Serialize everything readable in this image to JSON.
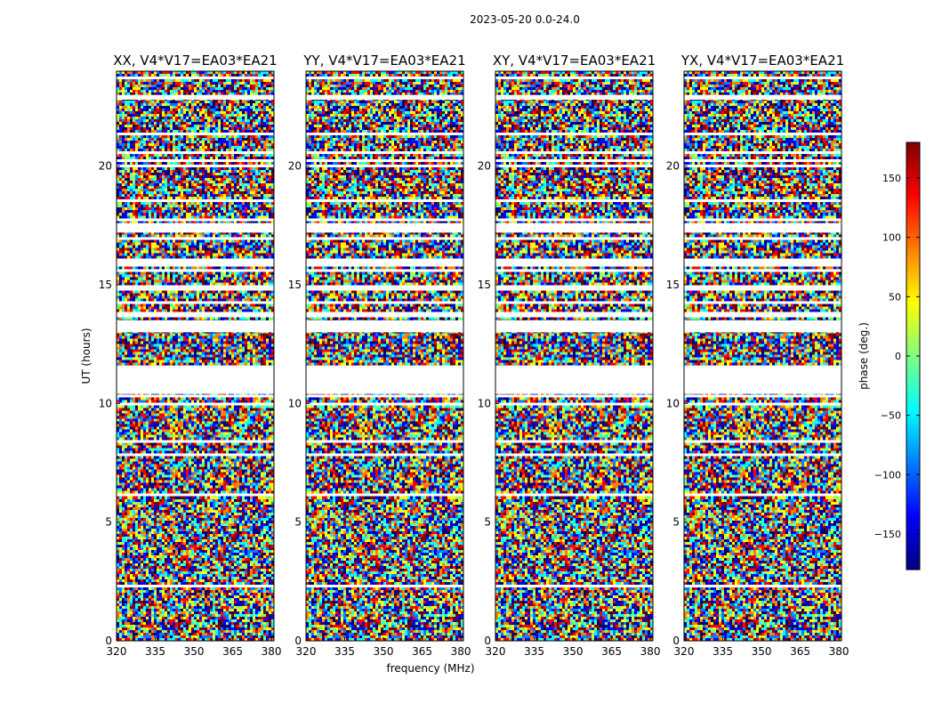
{
  "chart_data": {
    "type": "heatmap",
    "suptitle": "2023-05-20 0.0-24.0",
    "xlabel": "frequency (MHz)",
    "ylabel": "UT (hours)",
    "xlim": [
      320,
      381
    ],
    "ylim": [
      0,
      24
    ],
    "xticks": [
      320,
      335,
      350,
      365,
      380
    ],
    "yticks": [
      0,
      5,
      10,
      15,
      20
    ],
    "panels": [
      {
        "title": "XX, V4*V17=EA03*EA21",
        "polarization": "XX"
      },
      {
        "title": "YY, V4*V17=EA03*EA21",
        "polarization": "YY"
      },
      {
        "title": "XY, V4*V17=EA03*EA21",
        "polarization": "XY"
      },
      {
        "title": "YX, V4*V17=EA03*EA21",
        "polarization": "YX"
      }
    ],
    "flagged_ut_gaps": [
      [
        10.4,
        11.6
      ],
      [
        13.0,
        13.5
      ],
      [
        17.2,
        17.6
      ],
      [
        22.8,
        23.0
      ]
    ],
    "colorbar": {
      "label": "phase (deg.)",
      "range": [
        -180,
        180
      ],
      "ticks": [
        -150,
        -100,
        -50,
        0,
        50,
        100,
        150
      ],
      "colormap": "jet",
      "colors": [
        "#00007f",
        "#0000ff",
        "#007fff",
        "#00ffff",
        "#7fff7f",
        "#ffff00",
        "#ff7f00",
        "#ff0000",
        "#7f0000"
      ]
    }
  }
}
